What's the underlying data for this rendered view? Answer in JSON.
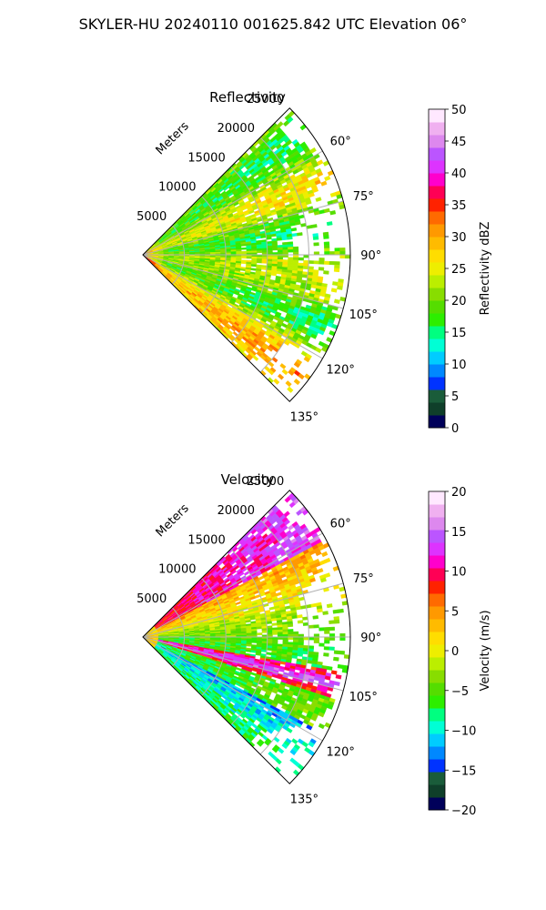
{
  "figure": {
    "suptitle": "SKYLER-HU  20240110  001625.842 UTC Elevation 06°"
  },
  "chart_data": [
    {
      "type": "heatmap",
      "projection": "polar-sector",
      "title": "Reflectivity",
      "radial_label": "Meters",
      "range_ticks": [
        "5000",
        "10000",
        "15000",
        "20000",
        "25000"
      ],
      "range_max": 25000,
      "azimuth_range_deg": [
        45,
        135
      ],
      "azimuth_ticks": [
        "60°",
        "75°",
        "90°",
        "105°",
        "120°",
        "135°"
      ],
      "grid": true,
      "colorbar": {
        "label": "Reflectivity dBZ",
        "min": 0,
        "max": 50,
        "ticks": [
          "0",
          "5",
          "10",
          "15",
          "20",
          "25",
          "30",
          "35",
          "40",
          "45",
          "50"
        ],
        "colors": [
          "#00005a",
          "#0f3f2a",
          "#1a5c3a",
          "#0033ff",
          "#0088ff",
          "#00ccff",
          "#00ffd5",
          "#00ff80",
          "#2dee00",
          "#55dd00",
          "#88dd00",
          "#bbee00",
          "#eeee00",
          "#ffdd00",
          "#ffbb00",
          "#ff9900",
          "#ff6a00",
          "#ff2200",
          "#ff0055",
          "#ff00cc",
          "#dd33ff",
          "#bb55ff",
          "#dd88ee",
          "#f0b0f0",
          "#ffe8ff"
        ]
      },
      "pattern": "mostly 18-28 dBZ echoes across sector; higher values (30-38 dBZ) near the radar and along the southern edge"
    },
    {
      "type": "heatmap",
      "projection": "polar-sector",
      "title": "Velocity",
      "radial_label": "Meters",
      "range_ticks": [
        "5000",
        "10000",
        "15000",
        "20000",
        "25000"
      ],
      "range_max": 25000,
      "azimuth_range_deg": [
        45,
        135
      ],
      "azimuth_ticks": [
        "60°",
        "75°",
        "90°",
        "105°",
        "120°",
        "135°"
      ],
      "grid": true,
      "colorbar": {
        "label": "Velocity (m/s)",
        "min": -20,
        "max": 20,
        "ticks": [
          "−20",
          "−15",
          "−10",
          "−5",
          "0",
          "5",
          "10",
          "15",
          "20"
        ],
        "colors": [
          "#00005a",
          "#0f3f2a",
          "#1a5c3a",
          "#0033ff",
          "#0088ff",
          "#00ccff",
          "#00ffd5",
          "#00ff80",
          "#2dee00",
          "#55dd00",
          "#88dd00",
          "#bbee00",
          "#eeee00",
          "#ffdd00",
          "#ffbb00",
          "#ff9900",
          "#ff6a00",
          "#ff2200",
          "#ff0055",
          "#ff00cc",
          "#dd33ff",
          "#bb55ff",
          "#dd88ee",
          "#f0b0f0",
          "#ffe8ff"
        ]
      },
      "pattern": "banded radial structure: +5 to +15 m/s along north edge, near 0 in middle, −5 to −12 m/s in south, with a narrow positive (10-18 m/s) band near 100-110°"
    }
  ]
}
